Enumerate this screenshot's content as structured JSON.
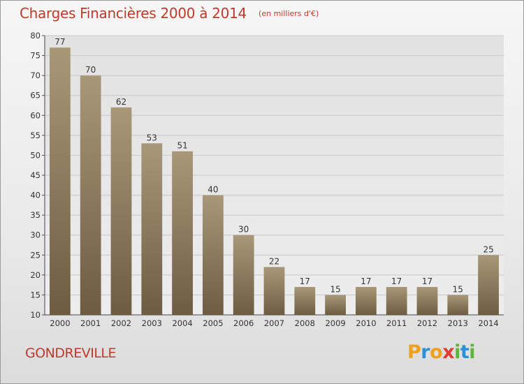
{
  "title": "Charges Financières 2000 à 2014",
  "subtitle": "(en milliers d'€)",
  "commune": "GONDREVILLE",
  "logo": {
    "letters": [
      "P",
      "r",
      "o",
      "x",
      "i",
      "t",
      "i"
    ],
    "colors": [
      "#f0a11c",
      "#2d8fd5",
      "#f0a11c",
      "#e33b2f",
      "#5bb536",
      "#2d8fd5",
      "#5bb536"
    ]
  },
  "colors": {
    "bar_top": "#a89878",
    "bar_bottom": "#6e5c42",
    "text_accent": "#c0392b",
    "grid": "#c8c8c8"
  },
  "chart_data": {
    "type": "bar",
    "title": "Charges Financières 2000 à 2014",
    "subtitle": "(en milliers d'€)",
    "categories": [
      "2000",
      "2001",
      "2002",
      "2003",
      "2004",
      "2005",
      "2006",
      "2007",
      "2008",
      "2009",
      "2010",
      "2011",
      "2012",
      "2013",
      "2014"
    ],
    "values": [
      77,
      70,
      62,
      53,
      51,
      40,
      30,
      22,
      17,
      15,
      17,
      17,
      17,
      15,
      25
    ],
    "ylim": [
      10,
      80
    ],
    "yticks": [
      10,
      15,
      20,
      25,
      30,
      35,
      40,
      45,
      50,
      55,
      60,
      65,
      70,
      75,
      80
    ],
    "grid": true,
    "xlabel": "",
    "ylabel": ""
  }
}
